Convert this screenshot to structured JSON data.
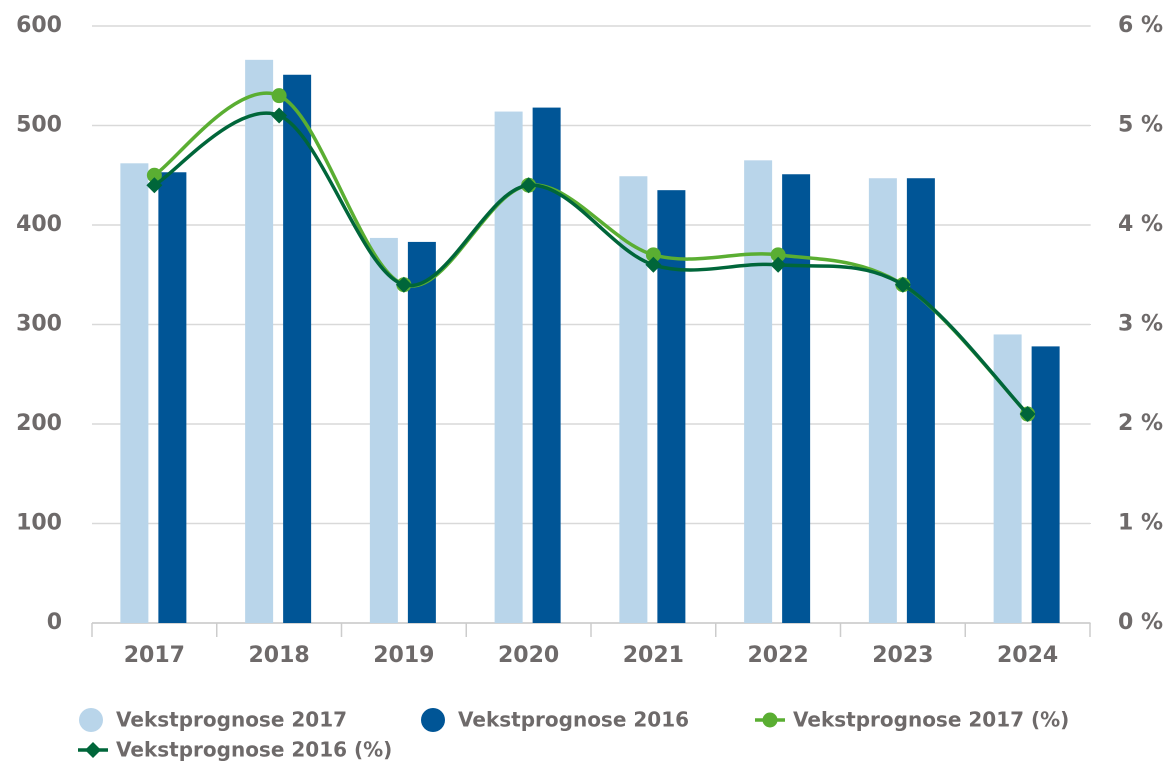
{
  "chart_data": {
    "type": "bar",
    "categories": [
      "2017",
      "2018",
      "2019",
      "2020",
      "2021",
      "2022",
      "2023",
      "2024"
    ],
    "series": [
      {
        "name": "Vekstprognose 2017",
        "type": "bar",
        "color": "#b9d5ea",
        "values": [
          462,
          566,
          387,
          514,
          449,
          465,
          447,
          290
        ]
      },
      {
        "name": "Vekstprognose 2016",
        "type": "bar",
        "color": "#005596",
        "values": [
          453,
          551,
          383,
          518,
          435,
          451,
          447,
          278
        ]
      },
      {
        "name": "Vekstprognose 2017 (%)",
        "type": "line",
        "axis": "y2",
        "marker": "circle",
        "color": "#5aae32",
        "values": [
          4.5,
          5.3,
          3.4,
          4.4,
          3.7,
          3.7,
          3.4,
          2.1
        ]
      },
      {
        "name": "Vekstprognose 2016 (%)",
        "type": "line",
        "axis": "y2",
        "marker": "diamond",
        "color": "#00663a",
        "values": [
          4.4,
          5.1,
          3.4,
          4.4,
          3.6,
          3.6,
          3.4,
          2.1
        ]
      }
    ],
    "ylim": [
      0,
      600
    ],
    "yticks": [
      0,
      100,
      200,
      300,
      400,
      500,
      600
    ],
    "y2lim": [
      0,
      6
    ],
    "y2ticks": [
      {
        "value": 0,
        "label": "0 %"
      },
      {
        "value": 1,
        "label": "1 %"
      },
      {
        "value": 2,
        "label": "2 %"
      },
      {
        "value": 3,
        "label": "3 %"
      },
      {
        "value": 4,
        "label": "4 %"
      },
      {
        "value": 5,
        "label": "5 %"
      },
      {
        "value": 6,
        "label": "6 %"
      }
    ],
    "grid": true,
    "legend": "bottom"
  }
}
